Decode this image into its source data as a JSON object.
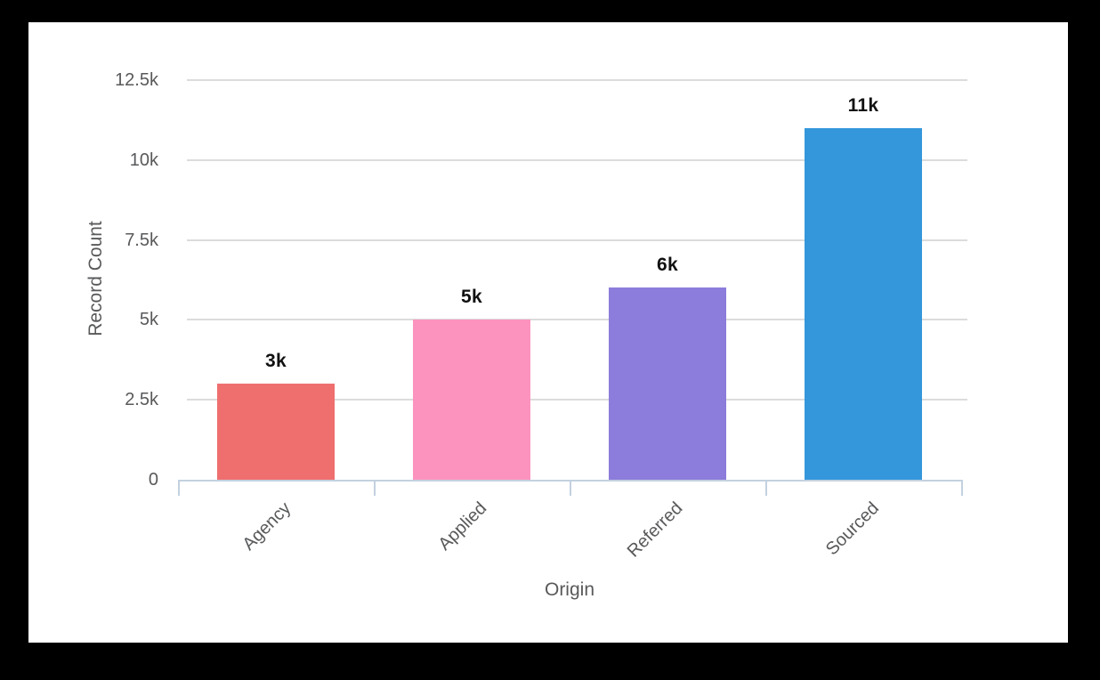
{
  "chart_data": {
    "type": "bar",
    "title": "",
    "categories": [
      "Agency",
      "Applied",
      "Referred",
      "Sourced"
    ],
    "values": [
      3000,
      5000,
      6000,
      11000
    ],
    "data_labels": [
      "3k",
      "5k",
      "6k",
      "11k"
    ],
    "bar_colors": [
      "#EF6F6F",
      "#FC93BE",
      "#8C7CDB",
      "#3497DB"
    ],
    "xlabel": "Origin",
    "ylabel": "Record Count",
    "y_ticks": [
      {
        "value": 0,
        "label": "0"
      },
      {
        "value": 2500,
        "label": "2.5k"
      },
      {
        "value": 5000,
        "label": "5k"
      },
      {
        "value": 7500,
        "label": "7.5k"
      },
      {
        "value": 10000,
        "label": "10k"
      },
      {
        "value": 12500,
        "label": "12.5k"
      }
    ],
    "ylim": [
      0,
      13750
    ],
    "grid": "horizontal-only",
    "legend": "none"
  },
  "colors": {
    "page_background": "#000000",
    "panel_background": "#FFFFFF",
    "axis_line": "#C3D1DF",
    "gridline": "#DCDCDC",
    "axis_text": "#58595B",
    "data_label_text": "#111111"
  }
}
